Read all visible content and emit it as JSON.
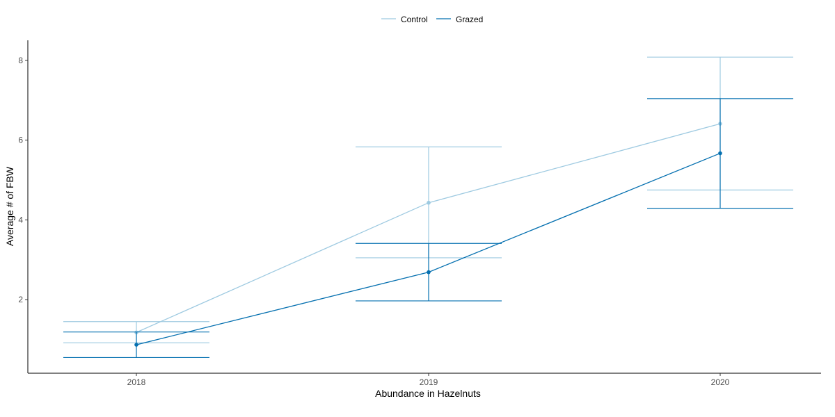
{
  "chart_data": {
    "type": "line",
    "title": "",
    "xlabel": "Abundance in Hazelnuts",
    "ylabel": "Average # of FBW",
    "categories": [
      "2018",
      "2019",
      "2020"
    ],
    "y_ticks": [
      "2",
      "4",
      "6",
      "8"
    ],
    "ylim": [
      0.3,
      8.5
    ],
    "grid": false,
    "legend_position": "top",
    "series": [
      {
        "name": "Control",
        "color": "#9ecae1",
        "values": [
          1.18,
          4.43,
          6.41
        ],
        "lower": [
          0.92,
          3.05,
          4.75
        ],
        "upper": [
          1.45,
          5.83,
          8.08
        ]
      },
      {
        "name": "Grazed",
        "color": "#0570b0",
        "values": [
          0.87,
          2.69,
          5.67
        ],
        "lower": [
          0.55,
          1.97,
          4.29
        ],
        "upper": [
          1.19,
          3.41,
          7.04
        ]
      }
    ]
  }
}
